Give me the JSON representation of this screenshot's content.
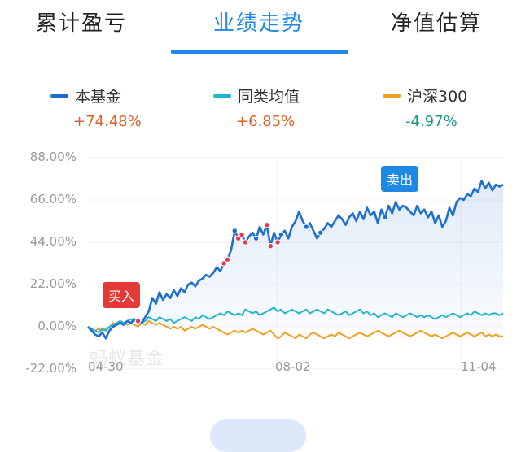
{
  "tabs": [
    {
      "label": "累计盈亏"
    },
    {
      "label": "业绩走势"
    },
    {
      "label": "净值估算"
    }
  ],
  "legend": [
    {
      "name": "本基金",
      "value": "+74.48%",
      "color": "#1e6fd2",
      "value_color": "#e0622b"
    },
    {
      "name": "同类均值",
      "value": "+6.85%",
      "color": "#22b5cf",
      "value_color": "#e0622b"
    },
    {
      "name": "沪深300",
      "value": "-4.97%",
      "color": "#f0a020",
      "value_color": "#1a9a8a"
    }
  ],
  "markers": {
    "buy": "买入",
    "sell": "卖出"
  },
  "watermark": "蚂蚁基金",
  "chart_data": {
    "type": "line",
    "x_ticks": [
      "04-30",
      "08-02",
      "11-04"
    ],
    "y_ticks": [
      "88.00%",
      "66.00%",
      "44.00%",
      "22.00%",
      "0.00%",
      "-22.00%"
    ],
    "ylim": [
      -22,
      88
    ],
    "series": [
      {
        "name": "本基金",
        "color": "#1e6fd2",
        "values": [
          0,
          -2,
          -4,
          -5,
          -3,
          -6,
          -2,
          0,
          1,
          2,
          1,
          3,
          2,
          4,
          3,
          2,
          5,
          8,
          15,
          12,
          18,
          14,
          17,
          15,
          19,
          16,
          20,
          18,
          22,
          23,
          21,
          24,
          25,
          27,
          26,
          28,
          31,
          29,
          33,
          35,
          40,
          50,
          46,
          48,
          44,
          47,
          49,
          46,
          52,
          48,
          53,
          42,
          49,
          44,
          48,
          50,
          46,
          52,
          55,
          60,
          55,
          52,
          54,
          50,
          46,
          49,
          51,
          54,
          52,
          55,
          58,
          56,
          53,
          57,
          59,
          55,
          60,
          56,
          62,
          58,
          60,
          54,
          61,
          57,
          63,
          59,
          65,
          61,
          63,
          62,
          60,
          58,
          63,
          59,
          61,
          57,
          60,
          54,
          58,
          52,
          55,
          62,
          58,
          65,
          67,
          66,
          69,
          68,
          72,
          70,
          76,
          72,
          75,
          71,
          74,
          73,
          74
        ]
      },
      {
        "name": "同类均值",
        "color": "#22b5cf",
        "values": [
          0,
          -1,
          -2,
          -3,
          -1,
          -2,
          0,
          1,
          2,
          3,
          2,
          3,
          4,
          3,
          4,
          2,
          3,
          5,
          4,
          3,
          5,
          4,
          3,
          4,
          2,
          3,
          4,
          5,
          4,
          3,
          5,
          4,
          6,
          5,
          4,
          5,
          6,
          7,
          6,
          8,
          7,
          6,
          7,
          6,
          9,
          8,
          7,
          8,
          6,
          7,
          8,
          9,
          10,
          8,
          9,
          7,
          8,
          9,
          8,
          7,
          8,
          9,
          7,
          8,
          9,
          8,
          7,
          9,
          8,
          7,
          6,
          7,
          8,
          6,
          7,
          8,
          9,
          7,
          8,
          6,
          7,
          5,
          6,
          7,
          6,
          5,
          7,
          6,
          5,
          6,
          7,
          6,
          5,
          6,
          5,
          6,
          5,
          4,
          5,
          6,
          5,
          6,
          7,
          6,
          5,
          6,
          7,
          6,
          8,
          7,
          6,
          7,
          6,
          7,
          7,
          6,
          7
        ]
      },
      {
        "name": "沪深300",
        "color": "#f0a020",
        "values": [
          0,
          -1,
          -2,
          -1,
          -2,
          -1,
          0,
          2,
          1,
          3,
          2,
          1,
          2,
          1,
          0,
          2,
          1,
          3,
          2,
          1,
          2,
          1,
          0,
          -1,
          0,
          -1,
          0,
          -2,
          -1,
          0,
          -1,
          0,
          1,
          0,
          -1,
          0,
          -1,
          -2,
          -3,
          -4,
          -3,
          -2,
          -3,
          -2,
          -3,
          -2,
          -1,
          -2,
          -3,
          -4,
          -3,
          -2,
          -4,
          -6,
          -5,
          -3,
          -4,
          -5,
          -6,
          -4,
          -5,
          -6,
          -4,
          -3,
          -4,
          -5,
          -6,
          -5,
          -4,
          -5,
          -3,
          -4,
          -5,
          -6,
          -5,
          -4,
          -3,
          -4,
          -5,
          -4,
          -3,
          -2,
          -3,
          -4,
          -5,
          -4,
          -3,
          -2,
          -3,
          -4,
          -5,
          -4,
          -3,
          -2,
          -3,
          -4,
          -5,
          -4,
          -5,
          -6,
          -5,
          -4,
          -3,
          -4,
          -5,
          -4,
          -3,
          -4,
          -5,
          -4,
          -3,
          -5,
          -4,
          -5,
          -4,
          -5,
          -5
        ]
      }
    ],
    "trade_points": {
      "buy_indices": [
        14,
        38,
        39,
        42,
        43,
        44,
        50,
        51,
        53
      ],
      "sell_indices": [
        39,
        41,
        44,
        47,
        54,
        61,
        65,
        83
      ]
    },
    "grid": true
  }
}
